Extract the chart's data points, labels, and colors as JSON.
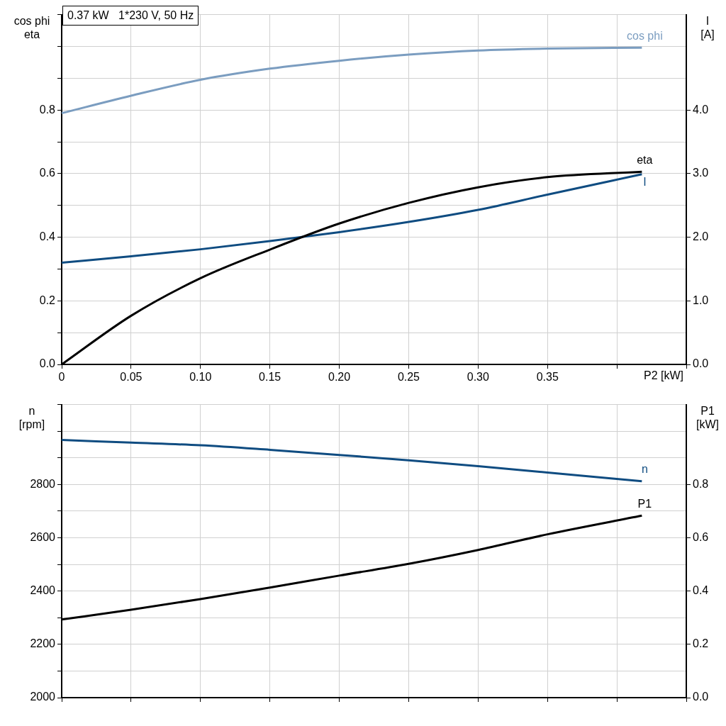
{
  "chart_data": [
    {
      "type": "line",
      "title": "0.37 kW   1*230 V, 50 Hz",
      "xlabel": "P2 [kW]",
      "ylabel": "cos phi\neta",
      "y2label": "I\n[A]",
      "x": [
        0,
        0.05,
        0.1,
        0.15,
        0.2,
        0.25,
        0.3,
        0.35,
        0.418
      ],
      "xlim": [
        0,
        0.45
      ],
      "xticks": [
        {
          "value": 0,
          "label": "0"
        },
        {
          "value": 0.05,
          "label": "0.05"
        },
        {
          "value": 0.1,
          "label": "0.10"
        },
        {
          "value": 0.15,
          "label": "0.15"
        },
        {
          "value": 0.2,
          "label": "0.20"
        },
        {
          "value": 0.25,
          "label": "0.25"
        },
        {
          "value": 0.3,
          "label": "0.30"
        },
        {
          "value": 0.35,
          "label": "0.35"
        },
        {
          "value": 0.4,
          "label": null
        },
        {
          "value": 0.45,
          "label": null
        }
      ],
      "ylim": [
        0,
        1.1
      ],
      "yticks": [
        {
          "value": 0,
          "label": "0.0"
        },
        {
          "value": 0.1,
          "label": null
        },
        {
          "value": 0.2,
          "label": "0.2"
        },
        {
          "value": 0.3,
          "label": null
        },
        {
          "value": 0.4,
          "label": "0.4"
        },
        {
          "value": 0.5,
          "label": null
        },
        {
          "value": 0.6,
          "label": "0.6"
        },
        {
          "value": 0.7,
          "label": null
        },
        {
          "value": 0.8,
          "label": "0.8"
        },
        {
          "value": 0.9,
          "label": null
        },
        {
          "value": 1.0,
          "label": null
        },
        {
          "value": 1.1,
          "label": null
        }
      ],
      "y2lim": [
        0,
        5.5
      ],
      "y2ticks": [
        {
          "value": 0,
          "label": "0.0"
        },
        {
          "value": 1,
          "label": "1.0"
        },
        {
          "value": 2,
          "label": "2.0"
        },
        {
          "value": 3,
          "label": "3.0"
        },
        {
          "value": 4,
          "label": "4.0"
        }
      ],
      "grid": true,
      "legend": false,
      "marker": "none",
      "line_style": "solid",
      "series": [
        {
          "name": "cos phi",
          "color": "#7b9dc0",
          "values": [
            0.79,
            0.845,
            0.895,
            0.93,
            0.955,
            0.974,
            0.987,
            0.993,
            0.996
          ]
        },
        {
          "name": "eta",
          "color": "#000000",
          "values": [
            0,
            0.153,
            0.271,
            0.361,
            0.443,
            0.508,
            0.557,
            0.589,
            0.606
          ]
        },
        {
          "name": "I",
          "color": "#0f4c81",
          "axis": "y2",
          "values": [
            1.6,
            1.7,
            1.81,
            1.94,
            2.08,
            2.24,
            2.43,
            2.67,
            2.99
          ]
        }
      ]
    },
    {
      "type": "line",
      "ylabel": "n\n[rpm]",
      "y2label": "P1\n[kW]",
      "x": [
        0,
        0.05,
        0.1,
        0.15,
        0.2,
        0.25,
        0.3,
        0.35,
        0.418
      ],
      "xlim": [
        0,
        0.45
      ],
      "xticks": [
        0,
        0.05,
        0.1,
        0.15,
        0.2,
        0.25,
        0.3,
        0.35,
        0.4,
        0.45
      ],
      "tick_labels": "y",
      "ylim": [
        2000,
        3100
      ],
      "yticks": [
        2000,
        {
          "value": 2100,
          "label": null
        },
        2200,
        {
          "value": 2300,
          "label": null
        },
        2400,
        {
          "value": 2500,
          "label": null
        },
        2600,
        {
          "value": 2700,
          "label": null
        },
        2800,
        {
          "value": 2900,
          "label": null
        },
        {
          "value": 3000,
          "label": null
        },
        {
          "value": 3100,
          "label": null
        }
      ],
      "y2lim": [
        0,
        1.1
      ],
      "y2ticks": [
        {
          "value": 0,
          "label": "0.0"
        },
        {
          "value": 0.2,
          "label": "0.2"
        },
        {
          "value": 0.4,
          "label": "0.4"
        },
        {
          "value": 0.6,
          "label": "0.6"
        },
        {
          "value": 0.8,
          "label": "0.8"
        }
      ],
      "grid": true,
      "legend": false,
      "marker": "none",
      "line_style": "solid",
      "series": [
        {
          "name": "n",
          "color": "#0f4c81",
          "values": [
            2967,
            2957,
            2947,
            2930,
            2911,
            2891,
            2869,
            2845,
            2812
          ]
        },
        {
          "name": "P1",
          "color": "#000000",
          "axis": "y2",
          "values": [
            0.293,
            0.33,
            0.37,
            0.413,
            0.458,
            0.502,
            0.554,
            0.613,
            0.683
          ]
        }
      ]
    }
  ]
}
